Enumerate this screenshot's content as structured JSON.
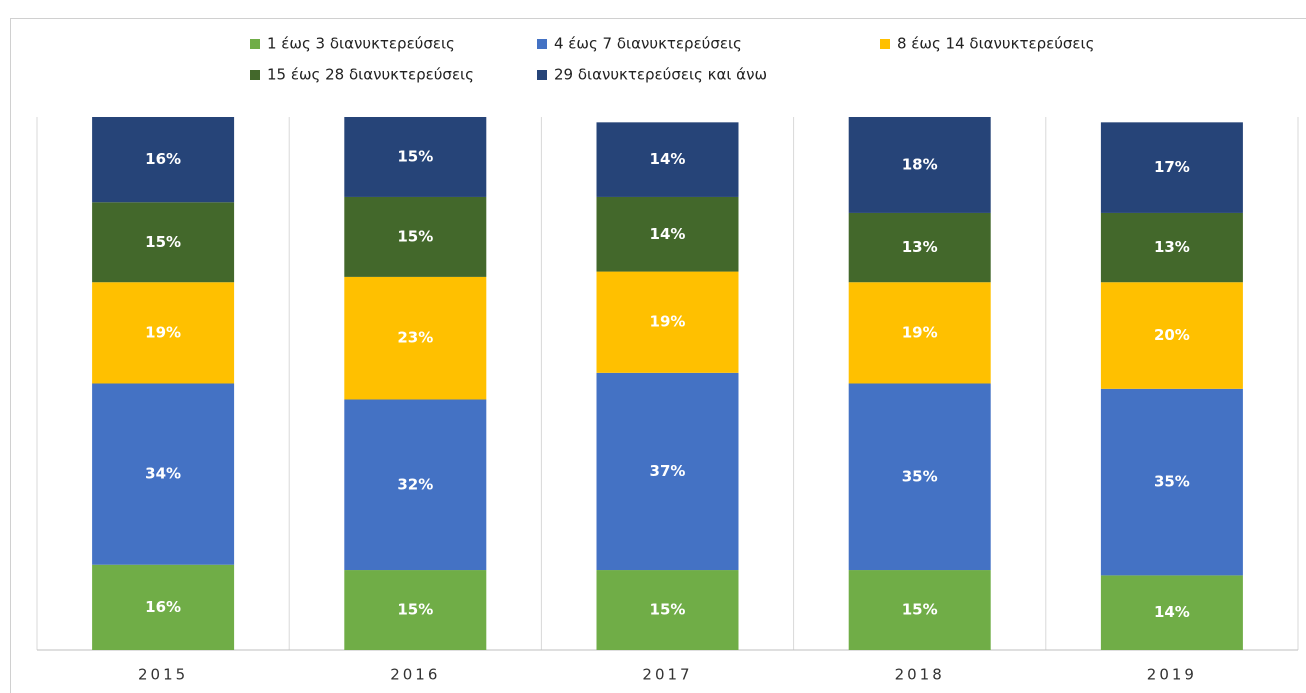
{
  "chart_data": {
    "type": "stacked-bar",
    "categories": [
      "2015",
      "2016",
      "2017",
      "2018",
      "2019"
    ],
    "series": [
      {
        "name": "1 έως 3 διανυκτερεύσεις",
        "color": "#70ad47",
        "values": [
          16,
          15,
          15,
          15,
          14
        ],
        "value_labels": [
          "16%",
          "15%",
          "15%",
          "15%",
          "14%"
        ]
      },
      {
        "name": "4 έως 7 διανυκτερεύσεις",
        "color": "#4472c4",
        "values": [
          34,
          32,
          37,
          35,
          35
        ],
        "value_labels": [
          "34%",
          "32%",
          "37%",
          "35%",
          "35%"
        ]
      },
      {
        "name": "8 έως 14 διανυκτερεύσεις",
        "color": "#ffc000",
        "values": [
          19,
          23,
          19,
          19,
          20
        ],
        "value_labels": [
          "19%",
          "23%",
          "19%",
          "19%",
          "20%"
        ]
      },
      {
        "name": "15 έως 28 διανυκτερεύσεις",
        "color": "#43682b",
        "values": [
          15,
          15,
          14,
          13,
          13
        ],
        "value_labels": [
          "15%",
          "15%",
          "14%",
          "13%",
          "13%"
        ]
      },
      {
        "name": "29 διανυκτερεύσεις και άνω",
        "color": "#264478",
        "values": [
          16,
          15,
          14,
          18,
          17
        ],
        "value_labels": [
          "16%",
          "15%",
          "14%",
          "18%",
          "17%"
        ]
      }
    ],
    "ylim": [
      0,
      100
    ]
  }
}
